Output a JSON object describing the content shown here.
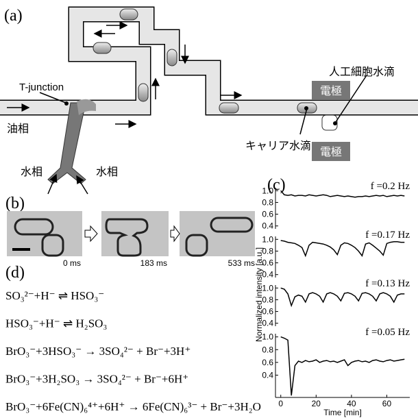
{
  "panel_a": {
    "label": "(a)",
    "t_junction": "T-junction",
    "oil": "油相",
    "water_left": "水相",
    "water_right": "水相",
    "electrode_top": "電極",
    "electrode_bottom": "電極",
    "artificial_cell": "人工細胞水滴",
    "carrier": "キャリア水滴"
  },
  "panel_b": {
    "label": "(b)",
    "times": [
      "0 ms",
      "183 ms",
      "533 ms"
    ]
  },
  "panel_c": {
    "label": "(c)"
  },
  "panel_d": {
    "label": "(d)",
    "equations": [
      "SO₃²⁻+H⁻ ⇌ HSO₃⁻",
      "HSO₃⁻+H⁻ ⇌ H₂SO₃",
      "BrO₃⁻+3HSO₃⁻ → 3SO₄²⁻ + Br⁻+3H⁺",
      "BrO₃⁻+3H₂SO₃ → 3SO₄²⁻ + Br⁻+6H⁺",
      "BrO₃⁻+6Fe(CN)₆⁴⁺+6H⁺ → 6Fe(CN)₆³⁻ + Br⁻+3H₂O"
    ]
  },
  "chart_data": [
    {
      "type": "line",
      "annotation": "f =0.2 Hz",
      "ylabel": "Normalized intensity [a.u.]",
      "color": "#000000",
      "x": [
        0,
        2,
        4,
        6,
        8,
        10,
        12,
        14,
        16,
        18,
        20,
        22,
        24,
        26,
        28,
        30,
        32,
        34,
        36,
        38,
        40,
        42,
        44,
        46,
        48,
        50,
        52,
        54,
        56,
        58,
        60,
        62,
        64,
        66,
        68,
        70
      ],
      "values": [
        1.0,
        0.93,
        0.92,
        0.93,
        0.91,
        0.92,
        0.92,
        0.91,
        0.93,
        0.92,
        0.91,
        0.92,
        0.93,
        0.92,
        0.9,
        0.91,
        0.92,
        0.91,
        0.9,
        0.91,
        0.9,
        0.89,
        0.9,
        0.9,
        0.91,
        0.9,
        0.91,
        0.92,
        0.91,
        0.92,
        0.9,
        0.91,
        0.92,
        0.91,
        0.92,
        0.91
      ],
      "xlim": [
        -3,
        73
      ],
      "ylim": [
        0.35,
        1.05
      ],
      "yticks": [
        0.4,
        0.6,
        0.8,
        {
          "value": 1,
          "label": "1.0"
        }
      ]
    },
    {
      "type": "line",
      "annotation": "f =0.17 Hz",
      "color": "#000000",
      "x": [
        0,
        2,
        4,
        6,
        8,
        10,
        12,
        14,
        16,
        18,
        20,
        22,
        24,
        26,
        28,
        30,
        32,
        34,
        36,
        38,
        40,
        42,
        44,
        46,
        48,
        50,
        52,
        54,
        56,
        58,
        60,
        62,
        64,
        66,
        68,
        70
      ],
      "values": [
        0.98,
        0.97,
        0.95,
        0.94,
        0.93,
        0.9,
        0.86,
        0.72,
        0.9,
        0.95,
        0.94,
        0.93,
        0.92,
        0.9,
        0.87,
        0.82,
        0.74,
        0.9,
        0.94,
        0.93,
        0.9,
        0.86,
        0.8,
        0.72,
        0.92,
        0.94,
        0.9,
        0.85,
        0.8,
        0.73,
        0.93,
        0.95,
        0.96,
        0.96,
        0.95,
        0.95
      ],
      "xlim": [
        -3,
        73
      ],
      "ylim": [
        0.35,
        1.05
      ],
      "yticks": [
        0.4,
        0.6,
        0.8,
        {
          "value": 1,
          "label": "1.0"
        }
      ]
    },
    {
      "type": "line",
      "annotation": "f =0.13 Hz",
      "color": "#000000",
      "x": [
        0,
        2,
        4,
        6,
        8,
        10,
        12,
        14,
        16,
        18,
        20,
        22,
        24,
        26,
        28,
        30,
        32,
        34,
        36,
        38,
        40,
        42,
        44,
        46,
        48,
        50,
        52,
        54,
        56,
        58,
        60,
        62,
        64,
        66,
        68,
        70
      ],
      "values": [
        1.0,
        0.98,
        0.9,
        0.7,
        0.85,
        0.88,
        0.86,
        0.76,
        0.9,
        0.92,
        0.9,
        0.86,
        0.76,
        0.9,
        0.92,
        0.9,
        0.86,
        0.78,
        0.91,
        0.92,
        0.9,
        0.86,
        0.78,
        0.91,
        0.92,
        0.9,
        0.86,
        0.78,
        0.9,
        0.92,
        0.9,
        0.86,
        0.76,
        0.88,
        0.9,
        0.9
      ],
      "xlim": [
        -3,
        73
      ],
      "ylim": [
        0.35,
        1.05
      ],
      "yticks": [
        0.4,
        0.6,
        0.8,
        {
          "value": 1,
          "label": "1.0"
        }
      ]
    },
    {
      "type": "line",
      "annotation": "f =0.05 Hz",
      "xlabel": "Time [min]",
      "color": "#000000",
      "x": [
        0,
        2,
        4,
        6,
        8,
        10,
        12,
        14,
        16,
        18,
        20,
        22,
        24,
        26,
        28,
        30,
        32,
        34,
        36,
        38,
        40,
        42,
        44,
        46,
        48,
        50,
        52,
        54,
        56,
        58,
        60,
        62,
        64,
        66,
        68,
        70
      ],
      "values": [
        1.0,
        0.98,
        0.95,
        0.08,
        0.55,
        0.62,
        0.6,
        0.63,
        0.61,
        0.62,
        0.64,
        0.6,
        0.62,
        0.63,
        0.61,
        0.62,
        0.6,
        0.62,
        0.64,
        0.55,
        0.6,
        0.62,
        0.63,
        0.61,
        0.62,
        0.6,
        0.63,
        0.64,
        0.62,
        0.61,
        0.63,
        0.64,
        0.62,
        0.63,
        0.64,
        0.65
      ],
      "xlim": [
        -3,
        73
      ],
      "ylim": [
        0.05,
        1.05
      ],
      "yticks": [
        0.4,
        0.6,
        0.8,
        {
          "value": 1,
          "label": "1.0"
        }
      ],
      "xticks": [
        0,
        20,
        40,
        60
      ]
    }
  ]
}
